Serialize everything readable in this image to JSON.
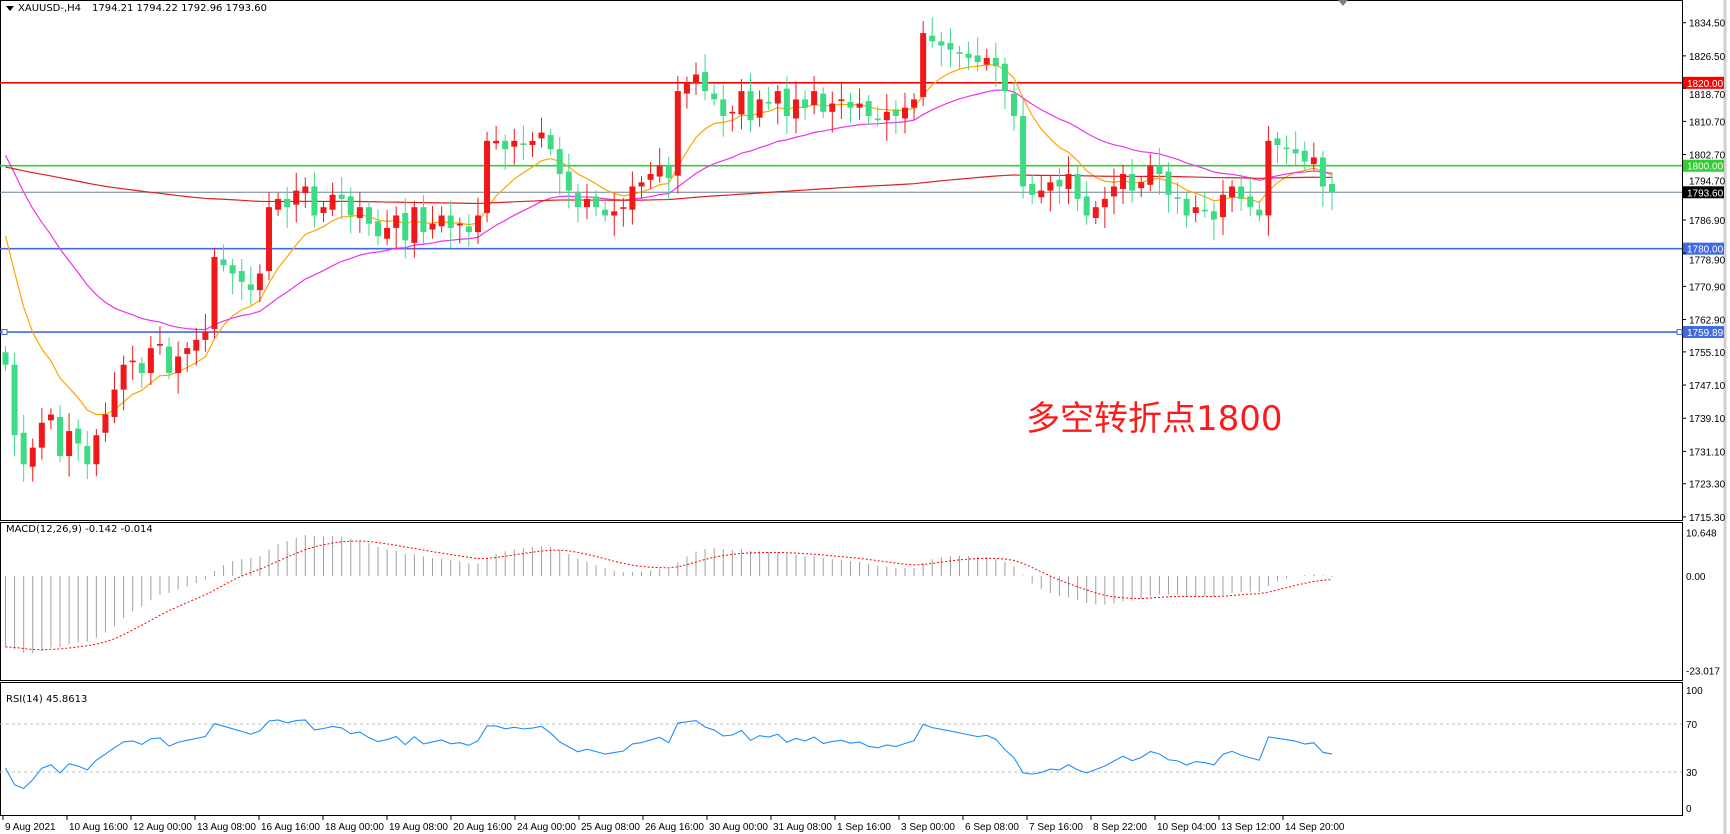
{
  "header": {
    "symbol_label": "XAUUSD-,H4",
    "ohlc": "1794.21 1794.22 1792.96 1793.60"
  },
  "annotation": "多空转折点1800",
  "colors": {
    "bull": "#f01818",
    "bear": "#3ddc84",
    "ma_fast": "#ffa500",
    "ma_mid": "#ee33ee",
    "ma_slow": "#e02020",
    "rsi": "#1e90ff",
    "macd_hist": "#a0a0a0",
    "macd_signal": "#ff0000"
  },
  "price_axis": {
    "ticks": [
      "1834.50",
      "1826.50",
      "1818.70",
      "1810.70",
      "1802.70",
      "1794.70",
      "1786.90",
      "1778.90",
      "1770.90",
      "1762.90",
      "1755.10",
      "1747.10",
      "1739.10",
      "1731.10",
      "1723.30",
      "1715.30"
    ]
  },
  "hlines": [
    {
      "price": 1820.0,
      "label": "1820.00",
      "color": "#ff0000"
    },
    {
      "price": 1800.0,
      "label": "1800.00",
      "color": "#32cd32"
    },
    {
      "price": 1793.6,
      "label": "1793.60",
      "color": "#000000",
      "line_color": "#708090"
    },
    {
      "price": 1780.0,
      "label": "1780.00",
      "color": "#4169e1"
    },
    {
      "price": 1759.89,
      "label": "1759.89",
      "color": "#4169e1"
    }
  ],
  "time_axis": [
    "9 Aug 2021",
    "10 Aug 16:00",
    "12 Aug 00:00",
    "13 Aug 08:00",
    "16 Aug 16:00",
    "18 Aug 00:00",
    "19 Aug 08:00",
    "20 Aug 16:00",
    "24 Aug 00:00",
    "25 Aug 08:00",
    "26 Aug 16:00",
    "30 Aug 00:00",
    "31 Aug 08:00",
    "1 Sep 16:00",
    "3 Sep 00:00",
    "6 Sep 08:00",
    "7 Sep 16:00",
    "8 Sep 22:00",
    "10 Sep 04:00",
    "13 Sep 12:00",
    "14 Sep 20:00"
  ],
  "macd": {
    "label": "MACD(12,26,9) -0.142 -0.014",
    "ticks": [
      "10.648",
      "0.00",
      "-23.017"
    ]
  },
  "rsi": {
    "label": "RSI(14) 45.8613",
    "ticks": [
      "100",
      "70",
      "30",
      "0"
    ],
    "levels": [
      70,
      30
    ]
  },
  "chart_data": {
    "type": "candlestick",
    "title": "XAUUSD-,H4",
    "ylim": [
      1715.3,
      1834.5
    ],
    "closes": [
      1752,
      1735,
      1728,
      1732,
      1738,
      1740,
      1730,
      1736,
      1733,
      1728,
      1735,
      1740,
      1746,
      1752,
      1753,
      1750,
      1756,
      1757,
      1750,
      1754,
      1756,
      1758,
      1760,
      1778,
      1776,
      1774,
      1772,
      1770,
      1774,
      1790,
      1792,
      1790,
      1794,
      1795,
      1788,
      1790,
      1793,
      1792,
      1788,
      1790,
      1786,
      1783,
      1785,
      1788,
      1782,
      1790,
      1784,
      1786,
      1788,
      1785,
      1786,
      1784,
      1788,
      1806,
      1806,
      1804,
      1806,
      1805,
      1806,
      1808,
      1804,
      1798,
      1794,
      1790,
      1792,
      1790,
      1788,
      1789,
      1790,
      1795,
      1796,
      1798,
      1800,
      1797,
      1818,
      1820,
      1822,
      1818,
      1816,
      1812,
      1813,
      1818,
      1811,
      1816,
      1815,
      1818,
      1812,
      1816,
      1814,
      1818,
      1813,
      1815,
      1816,
      1814,
      1815,
      1812,
      1811,
      1813,
      1812,
      1814,
      1816,
      1832,
      1830,
      1829,
      1828,
      1827,
      1826,
      1825,
      1826,
      1824,
      1818,
      1812,
      1795,
      1793,
      1794,
      1796,
      1795,
      1798,
      1792,
      1788,
      1790,
      1792,
      1795,
      1798,
      1794,
      1796,
      1800,
      1798,
      1793,
      1792,
      1788,
      1790,
      1789,
      1787,
      1793,
      1795,
      1792,
      1790,
      1788,
      1806,
      1805,
      1804,
      1803,
      1801,
      1802,
      1795,
      1793.6
    ],
    "last_price": 1793.6
  }
}
